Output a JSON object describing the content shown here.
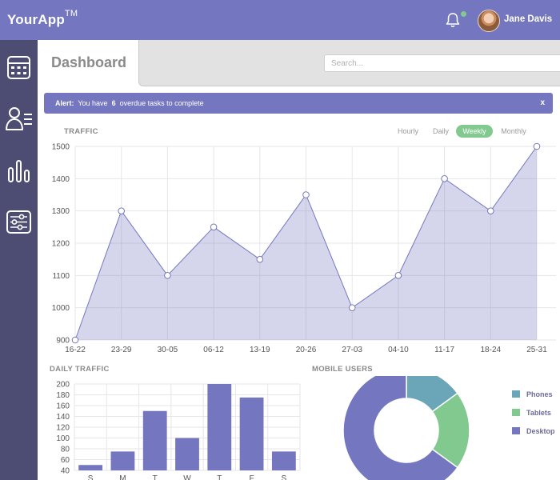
{
  "header": {
    "app_name": "YourApp",
    "trademark": "TM",
    "user_name": "Jane Davis"
  },
  "sidebar": {
    "items": [
      "calendar-icon",
      "users-icon",
      "bar-chart-icon",
      "sliders-icon"
    ]
  },
  "page": {
    "title": "Dashboard",
    "search_placeholder": "Search..."
  },
  "alert": {
    "label": "Alert:",
    "text_before": "You have",
    "count": "6",
    "text_after": "overdue tasks to complete",
    "close": "x"
  },
  "traffic": {
    "label": "TRAFFIC",
    "tabs": [
      "Hourly",
      "Daily",
      "Weekly",
      "Monthly"
    ],
    "active_tab": "Weekly"
  },
  "daily_traffic": {
    "label": "DAILY TRAFFIC"
  },
  "mobile_users": {
    "label": "MOBILE USERS",
    "legend": [
      {
        "name": "Phones",
        "color": "#6aa5b8"
      },
      {
        "name": "Tablets",
        "color": "#81c98f"
      },
      {
        "name": "Desktop",
        "color": "#7477bf"
      }
    ]
  },
  "colors": {
    "primary": "#7477bf",
    "sidebar": "#4d4c72",
    "accent_green": "#81c98f",
    "teal": "#6aa5b8"
  },
  "chart_data": [
    {
      "type": "area",
      "title": "TRAFFIC",
      "categories": [
        "16-22",
        "23-29",
        "30-05",
        "06-12",
        "13-19",
        "20-26",
        "27-03",
        "04-10",
        "11-17",
        "18-24",
        "25-31"
      ],
      "values": [
        900,
        1300,
        1100,
        1250,
        1150,
        1350,
        1000,
        1100,
        1400,
        1300,
        1500
      ],
      "ylim": [
        900,
        1500
      ],
      "yticks": [
        900,
        1000,
        1100,
        1200,
        1300,
        1400,
        1500
      ],
      "grid": true
    },
    {
      "type": "bar",
      "title": "DAILY TRAFFIC",
      "categories": [
        "S",
        "M",
        "T",
        "W",
        "T",
        "F",
        "S"
      ],
      "values": [
        50,
        75,
        150,
        100,
        200,
        175,
        75
      ],
      "ylim": [
        40,
        200
      ],
      "yticks": [
        40,
        60,
        80,
        100,
        120,
        140,
        160,
        180,
        200
      ],
      "grid": true
    },
    {
      "type": "pie",
      "title": "MOBILE USERS",
      "donut": true,
      "labels": [
        "Phones",
        "Tablets",
        "Desktop"
      ],
      "values": [
        15,
        20,
        65
      ]
    }
  ]
}
